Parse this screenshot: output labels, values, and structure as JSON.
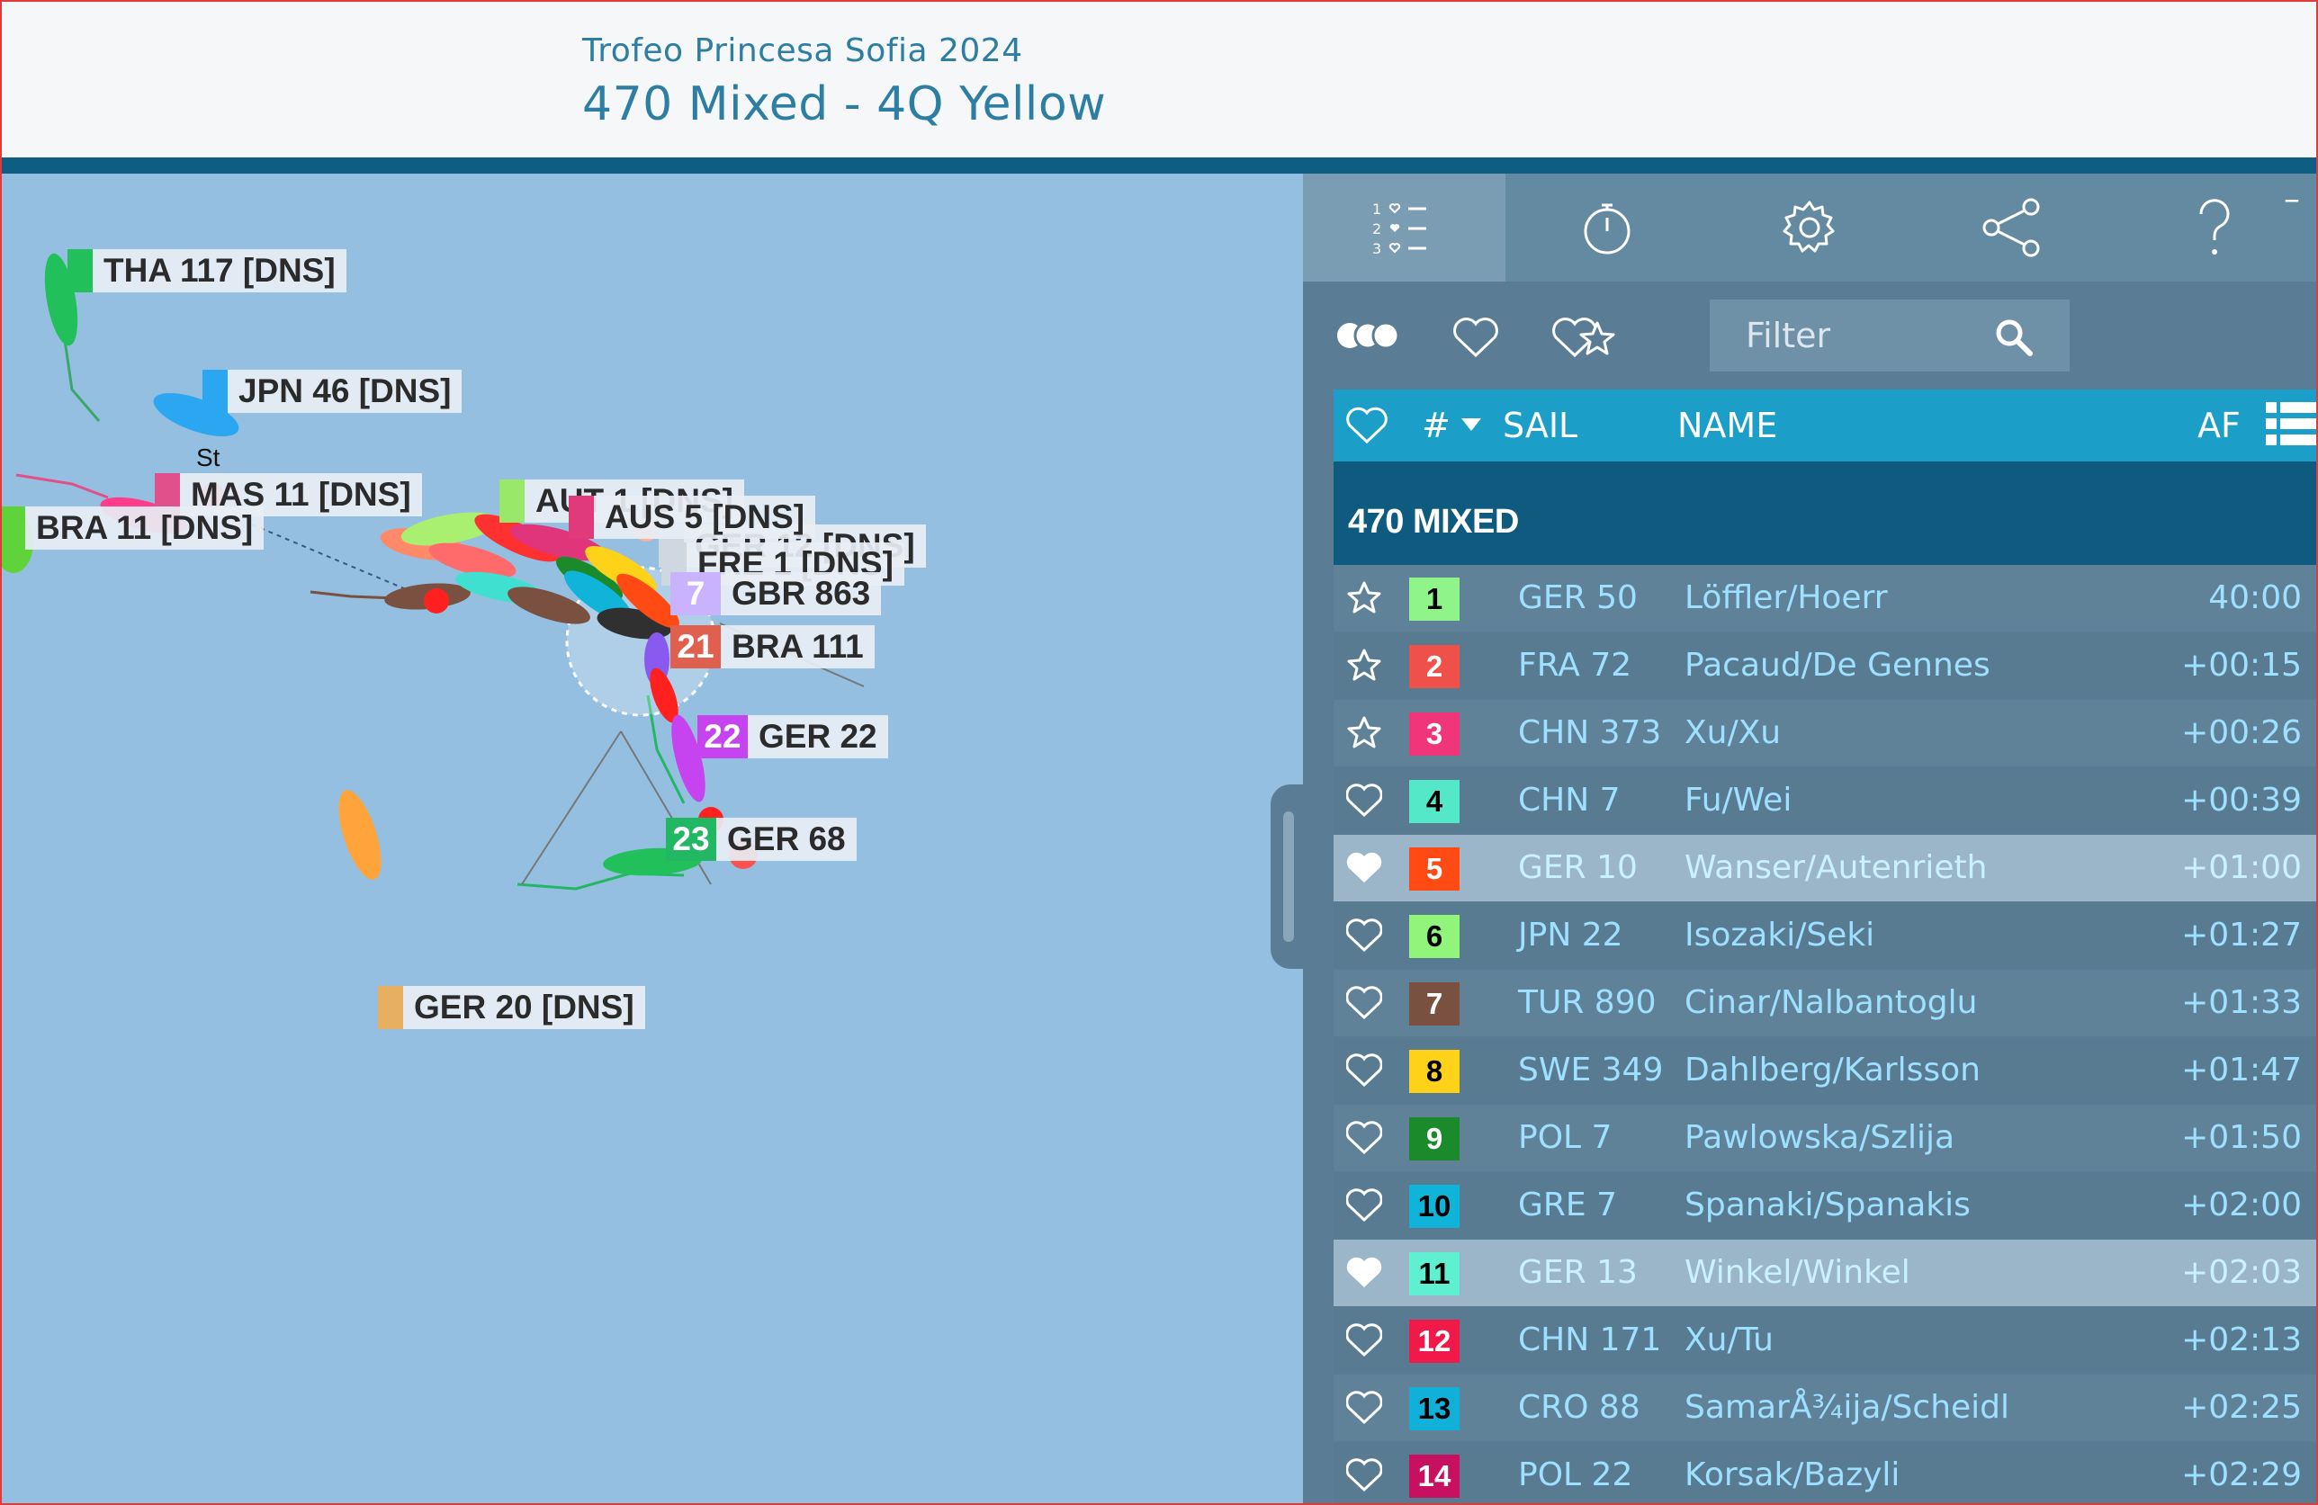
{
  "header": {
    "event": "Trofeo Princesa Sofia 2024",
    "race": "470 Mixed - 4Q Yellow"
  },
  "map": {
    "labels": [
      {
        "text": "THA 117 [DNS]",
        "color": "#22c05b"
      },
      {
        "text": "JPN 46 [DNS]",
        "color": "#2aa7f0"
      },
      {
        "text": "MAS 11 [DNS]",
        "color": "#e0508a"
      },
      {
        "text": "BRA 11 [DNS]",
        "color": "#5ed33a"
      },
      {
        "text": "AUT 1 [DNS]",
        "color": "#9ae86a"
      },
      {
        "text": "AUS 5 [DNS]",
        "color": "#e03a7a"
      },
      {
        "text": "GER 12 [DNS]",
        "color": "#cfd8e0"
      },
      {
        "text": "FRE 1 [DNS]",
        "color": "#cfd8e0"
      },
      {
        "text": "GBR 863",
        "rank": "7",
        "color": "#c9b3ff"
      },
      {
        "text": "BRA 111",
        "rank": "21",
        "color": "#e06050"
      },
      {
        "text": "GER 22",
        "rank": "22",
        "color": "#c643f0"
      },
      {
        "text": "GER 68",
        "rank": "23",
        "color": "#22b863"
      },
      {
        "text": "GER 20 [DNS]",
        "color": "#e7b060"
      }
    ],
    "start_mark": "St"
  },
  "toolbar": {
    "icons": [
      "leaderboard-icon",
      "stopwatch-icon",
      "settings-icon",
      "share-icon",
      "help-icon"
    ],
    "minimize": "–"
  },
  "filter": {
    "placeholder": "Filter"
  },
  "columns": {
    "number": "#",
    "sail": "SAIL",
    "name": "NAME",
    "time": "AF"
  },
  "group": "470 MIXED",
  "rows": [
    {
      "rank": "1",
      "sail": "GER 50",
      "name": "Löffler/Hoerr",
      "time": "40:00",
      "badge": "#8ff58a",
      "text": "#000",
      "fav": "star",
      "selected": false
    },
    {
      "rank": "2",
      "sail": "FRA 72",
      "name": "Pacaud/De Gennes",
      "time": "+00:15",
      "badge": "#f0504a",
      "text": "#fff",
      "fav": "star",
      "selected": false
    },
    {
      "rank": "3",
      "sail": "CHN 373",
      "name": "Xu/Xu",
      "time": "+00:26",
      "badge": "#f0357a",
      "text": "#fff",
      "fav": "star",
      "selected": false
    },
    {
      "rank": "4",
      "sail": "CHN 7",
      "name": "Fu/Wei",
      "time": "+00:39",
      "badge": "#55e8c8",
      "text": "#000",
      "fav": "heart",
      "selected": false
    },
    {
      "rank": "5",
      "sail": "GER 10",
      "name": "Wanser/Autenrieth",
      "time": "+01:00",
      "badge": "#ff4a14",
      "text": "#fff",
      "fav": "heart-filled",
      "selected": true
    },
    {
      "rank": "6",
      "sail": "JPN 22",
      "name": "Isozaki/Seki",
      "time": "+01:27",
      "badge": "#90f57a",
      "text": "#000",
      "fav": "heart",
      "selected": false
    },
    {
      "rank": "7",
      "sail": "TUR 890",
      "name": "Cinar/Nalbantoglu",
      "time": "+01:33",
      "badge": "#7a5040",
      "text": "#fff",
      "fav": "heart",
      "selected": false
    },
    {
      "rank": "8",
      "sail": "SWE 349",
      "name": "Dahlberg/Karlsson",
      "time": "+01:47",
      "badge": "#ffd21a",
      "text": "#000",
      "fav": "heart",
      "selected": false
    },
    {
      "rank": "9",
      "sail": "POL 7",
      "name": "Pawlowska/Szlija",
      "time": "+01:50",
      "badge": "#1a8a2a",
      "text": "#fff",
      "fav": "heart",
      "selected": false
    },
    {
      "rank": "10",
      "sail": "GRE 7",
      "name": "Spanaki/Spanakis",
      "time": "+02:00",
      "badge": "#10b4d8",
      "text": "#000",
      "fav": "heart",
      "selected": false
    },
    {
      "rank": "11",
      "sail": "GER 13",
      "name": "Winkel/Winkel",
      "time": "+02:03",
      "badge": "#5ef0d0",
      "text": "#000",
      "fav": "heart-filled",
      "selected": true
    },
    {
      "rank": "12",
      "sail": "CHN 171",
      "name": "Xu/Tu",
      "time": "+02:13",
      "badge": "#f01a4a",
      "text": "#fff",
      "fav": "heart",
      "selected": false
    },
    {
      "rank": "13",
      "sail": "CRO 88",
      "name": "SamarÅ¾ija/Scheidl",
      "time": "+02:25",
      "badge": "#10b0d8",
      "text": "#000",
      "fav": "heart",
      "selected": false
    },
    {
      "rank": "14",
      "sail": "POL 22",
      "name": "Korsak/Bazyli",
      "time": "+02:29",
      "badge": "#c81060",
      "text": "#fff",
      "fav": "heart",
      "selected": false
    }
  ]
}
